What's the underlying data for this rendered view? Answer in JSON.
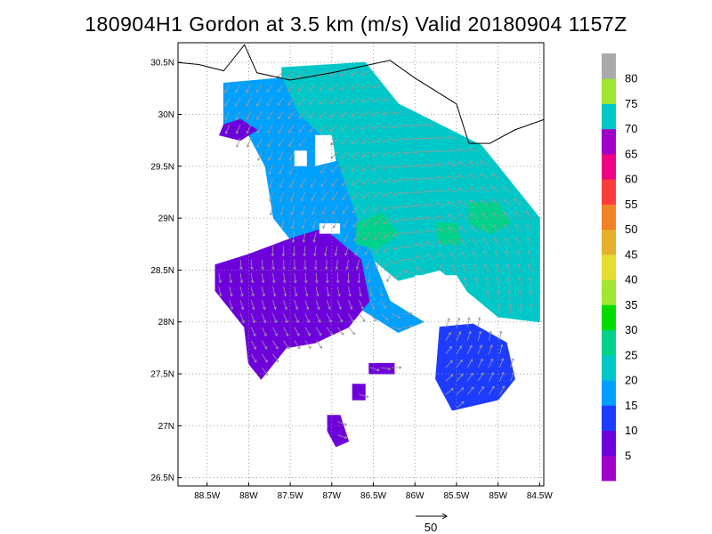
{
  "title": "180904H1 Gordon at 3.5 km (m/s) Valid 20180904 1157Z",
  "map": {
    "lon_range": [
      -88.85,
      -84.45
    ],
    "lat_range": [
      26.42,
      30.69
    ],
    "lon_ticks": [
      {
        "value": -88.5,
        "label": "88.5W"
      },
      {
        "value": -88.0,
        "label": "88W"
      },
      {
        "value": -87.5,
        "label": "87.5W"
      },
      {
        "value": -87.0,
        "label": "87W"
      },
      {
        "value": -86.5,
        "label": "86.5W"
      },
      {
        "value": -86.0,
        "label": "86W"
      },
      {
        "value": -85.5,
        "label": "85.5W"
      },
      {
        "value": -85.0,
        "label": "85W"
      },
      {
        "value": -84.5,
        "label": "84.5W"
      }
    ],
    "lat_ticks": [
      {
        "value": 30.5,
        "label": "30.5N"
      },
      {
        "value": 30.0,
        "label": "30N"
      },
      {
        "value": 29.5,
        "label": "29.5N"
      },
      {
        "value": 29.0,
        "label": "29N"
      },
      {
        "value": 28.5,
        "label": "28.5N"
      },
      {
        "value": 28.0,
        "label": "28N"
      },
      {
        "value": 27.5,
        "label": "27.5N"
      },
      {
        "value": 27.0,
        "label": "27N"
      },
      {
        "value": 26.5,
        "label": "26.5N"
      }
    ],
    "grid": true,
    "coastline": [
      [
        -88.85,
        30.5
      ],
      [
        -88.6,
        30.48
      ],
      [
        -88.3,
        30.42
      ],
      [
        -88.05,
        30.67
      ],
      [
        -87.9,
        30.4
      ],
      [
        -87.5,
        30.33
      ],
      [
        -87.0,
        30.4
      ],
      [
        -86.6,
        30.47
      ],
      [
        -86.3,
        30.52
      ],
      [
        -86.0,
        30.35
      ],
      [
        -85.5,
        30.1
      ],
      [
        -85.35,
        29.72
      ],
      [
        -85.1,
        29.72
      ],
      [
        -84.8,
        29.85
      ],
      [
        -84.45,
        29.95
      ]
    ]
  },
  "colorbar": {
    "labels": [
      "5",
      "10",
      "15",
      "20",
      "25",
      "30",
      "35",
      "40",
      "45",
      "50",
      "55",
      "60",
      "65",
      "70",
      "75",
      "80"
    ],
    "colors": [
      "#a000c8",
      "#6e00dc",
      "#1e3cff",
      "#00a0ff",
      "#00c8c8",
      "#00d28c",
      "#00dc00",
      "#a0e632",
      "#e6dc32",
      "#e6af2d",
      "#f08228",
      "#fa3c3c",
      "#f00082",
      "#a000c8",
      "#00c8c8",
      "#a0e632",
      "#aaaaaa"
    ]
  },
  "reference_vector": {
    "label": "50"
  },
  "wind_field": {
    "speed_units": "m/s",
    "regions": [
      {
        "speed": 22,
        "polygon": [
          [
            -87.6,
            30.45
          ],
          [
            -86.6,
            30.5
          ],
          [
            -86.2,
            30.1
          ],
          [
            -85.2,
            29.7
          ],
          [
            -84.9,
            29.4
          ],
          [
            -84.5,
            29.0
          ],
          [
            -84.5,
            28.0
          ],
          [
            -85.0,
            28.05
          ],
          [
            -85.3,
            28.25
          ],
          [
            -85.7,
            28.5
          ],
          [
            -86.2,
            28.4
          ],
          [
            -86.5,
            28.6
          ],
          [
            -86.7,
            28.95
          ],
          [
            -86.9,
            29.4
          ],
          [
            -87.2,
            29.8
          ],
          [
            -87.6,
            30.0
          ]
        ]
      },
      {
        "speed": 15,
        "polygon": [
          [
            -88.3,
            30.3
          ],
          [
            -87.6,
            30.35
          ],
          [
            -87.4,
            30.0
          ],
          [
            -87.0,
            29.7
          ],
          [
            -86.7,
            29.0
          ],
          [
            -86.5,
            28.6
          ],
          [
            -86.3,
            28.2
          ],
          [
            -85.9,
            28.0
          ],
          [
            -86.2,
            27.9
          ],
          [
            -86.7,
            28.15
          ],
          [
            -87.2,
            28.5
          ],
          [
            -87.7,
            29.0
          ],
          [
            -87.8,
            29.5
          ],
          [
            -88.0,
            29.8
          ],
          [
            -88.3,
            29.9
          ]
        ]
      },
      {
        "speed": 14,
        "polygon": [
          [
            -85.7,
            27.95
          ],
          [
            -85.3,
            27.98
          ],
          [
            -84.9,
            27.8
          ],
          [
            -84.8,
            27.45
          ],
          [
            -85.0,
            27.25
          ],
          [
            -85.55,
            27.15
          ],
          [
            -85.75,
            27.45
          ]
        ]
      },
      {
        "speed": 8,
        "polygon": [
          [
            -88.4,
            28.55
          ],
          [
            -88.0,
            28.65
          ],
          [
            -87.5,
            28.8
          ],
          [
            -87.1,
            28.9
          ],
          [
            -86.65,
            28.6
          ],
          [
            -86.55,
            28.2
          ],
          [
            -86.8,
            27.95
          ],
          [
            -87.2,
            27.8
          ],
          [
            -87.55,
            27.75
          ],
          [
            -87.85,
            27.45
          ],
          [
            -88.0,
            27.6
          ],
          [
            -88.05,
            27.95
          ],
          [
            -88.25,
            28.15
          ],
          [
            -88.4,
            28.3
          ]
        ]
      },
      {
        "speed": 8,
        "polygon": [
          [
            -88.3,
            29.9
          ],
          [
            -88.1,
            29.95
          ],
          [
            -87.9,
            29.85
          ],
          [
            -88.1,
            29.75
          ],
          [
            -88.35,
            29.8
          ]
        ]
      },
      {
        "speed": 8,
        "polygon": [
          [
            -87.05,
            27.1
          ],
          [
            -86.9,
            27.1
          ],
          [
            -86.8,
            26.85
          ],
          [
            -86.95,
            26.8
          ],
          [
            -87.05,
            26.95
          ]
        ]
      },
      {
        "speed": 8,
        "polygon": [
          [
            -86.75,
            27.4
          ],
          [
            -86.6,
            27.4
          ],
          [
            -86.6,
            27.25
          ],
          [
            -86.75,
            27.25
          ]
        ]
      },
      {
        "speed": 8,
        "polygon": [
          [
            -86.55,
            27.6
          ],
          [
            -86.25,
            27.6
          ],
          [
            -86.25,
            27.5
          ],
          [
            -86.55,
            27.5
          ]
        ]
      },
      {
        "speed": 26,
        "polygon": [
          [
            -86.7,
            28.95
          ],
          [
            -86.4,
            29.05
          ],
          [
            -86.2,
            28.85
          ],
          [
            -86.45,
            28.7
          ],
          [
            -86.7,
            28.75
          ]
        ]
      },
      {
        "speed": 26,
        "polygon": [
          [
            -85.35,
            29.15
          ],
          [
            -85.0,
            29.15
          ],
          [
            -84.85,
            28.95
          ],
          [
            -85.1,
            28.85
          ],
          [
            -85.35,
            28.95
          ]
        ]
      },
      {
        "speed": 26,
        "polygon": [
          [
            -85.75,
            28.95
          ],
          [
            -85.5,
            28.95
          ],
          [
            -85.45,
            28.75
          ],
          [
            -85.7,
            28.75
          ]
        ]
      }
    ],
    "gaps": [
      {
        "polygon": [
          [
            -87.2,
            29.8
          ],
          [
            -87.0,
            29.8
          ],
          [
            -86.95,
            29.55
          ],
          [
            -87.2,
            29.5
          ]
        ]
      },
      {
        "polygon": [
          [
            -87.45,
            29.65
          ],
          [
            -87.3,
            29.65
          ],
          [
            -87.3,
            29.5
          ],
          [
            -87.45,
            29.5
          ]
        ]
      },
      {
        "polygon": [
          [
            -86.0,
            28.45
          ],
          [
            -85.5,
            28.45
          ],
          [
            -85.3,
            28.2
          ],
          [
            -85.55,
            27.98
          ],
          [
            -85.9,
            28.05
          ],
          [
            -85.95,
            28.25
          ]
        ]
      },
      {
        "polygon": [
          [
            -87.15,
            28.95
          ],
          [
            -86.9,
            28.95
          ],
          [
            -86.9,
            28.85
          ],
          [
            -87.15,
            28.85
          ]
        ]
      },
      {
        "polygon": [
          [
            -86.6,
            27.9
          ],
          [
            -86.35,
            27.9
          ],
          [
            -86.35,
            27.8
          ],
          [
            -86.6,
            27.8
          ]
        ]
      }
    ],
    "vectors_sample": "cyclonic circulation; arrows scaled to reference vector"
  }
}
